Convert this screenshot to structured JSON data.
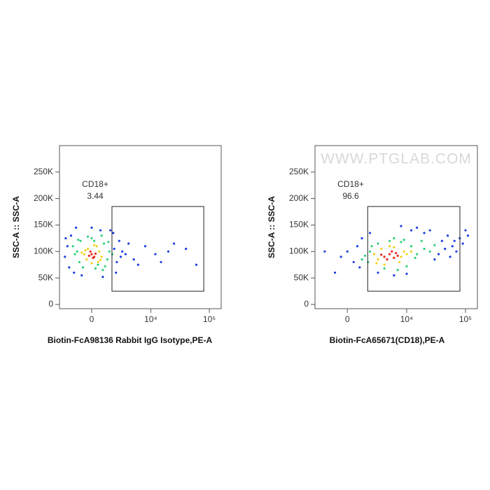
{
  "chart_data": [
    {
      "type": "scatter",
      "xlabel": "Biotin-FcA98136 Rabbit IgG Isotype,PE-A",
      "ylabel": "SSC-A :: SSC-A",
      "xscale": "biexponential",
      "xlim": [
        -3240,
        159000
      ],
      "ylim": [
        -8000,
        300000
      ],
      "xticks": [
        0,
        {
          "value": 10000,
          "label": "10⁴"
        },
        {
          "value": 100000,
          "label": "10⁵"
        }
      ],
      "yticks": [
        0,
        {
          "value": 50000,
          "label": "50K"
        },
        {
          "value": 100000,
          "label": "100K"
        },
        {
          "value": 150000,
          "label": "150K"
        },
        {
          "value": 200000,
          "label": "200K"
        },
        {
          "value": 250000,
          "label": "250K"
        }
      ],
      "gate": {
        "name": "CD18+",
        "percent": 3.44,
        "x": [
          1760,
          80400
        ],
        "y": [
          25000,
          185000
        ]
      },
      "series": [
        {
          "color": "#1a3fe0",
          "x": [
            -2500,
            -2200,
            -2000,
            -1800,
            2000,
            2300,
            2600,
            -1500,
            1600,
            0,
            -800,
            900,
            3000,
            3500,
            4000,
            5000,
            6000,
            8000,
            12000,
            15000,
            20000,
            25000,
            40000,
            60000,
            2200,
            -2400,
            1900,
            -1300,
            2800,
            700
          ],
          "values": [
            90000,
            110000,
            70000,
            130000,
            105000,
            80000,
            120000,
            60000,
            140000,
            145000,
            55000,
            52000,
            100000,
            95000,
            115000,
            85000,
            75000,
            110000,
            95000,
            80000,
            100000,
            115000,
            105000,
            75000,
            60000,
            125000,
            135000,
            145000,
            90000,
            140000
          ]
        },
        {
          "color": "#2fd07a",
          "x": [
            -1200,
            -1000,
            1000,
            1300,
            -900,
            1100,
            -1400,
            1500,
            0,
            300,
            -700,
            800,
            1800,
            -1600,
            500,
            -300,
            1400,
            -1100,
            900,
            200
          ],
          "values": [
            100000,
            80000,
            115000,
            85000,
            120000,
            72000,
            95000,
            100000,
            125000,
            68000,
            70000,
            130000,
            95000,
            110000,
            75000,
            128000,
            118000,
            122000,
            65000,
            120000
          ]
        },
        {
          "color": "#f2d21e",
          "x": [
            -600,
            -400,
            600,
            500,
            -300,
            400,
            800,
            -800,
            0,
            200,
            -500,
            700
          ],
          "values": [
            95000,
            85000,
            100000,
            80000,
            105000,
            110000,
            90000,
            98000,
            78000,
            112000,
            102000,
            84000
          ]
        },
        {
          "color": "#e8251c",
          "x": [
            -200,
            100,
            300,
            -100,
            200,
            0
          ],
          "values": [
            92000,
            88000,
            96000,
            100000,
            90000,
            95000
          ]
        }
      ]
    },
    {
      "type": "scatter",
      "xlabel": "Biotin-FcA65671(CD18),PE-A",
      "ylabel": "SSC-A :: SSC-A",
      "xscale": "biexponential",
      "watermark": "WWW.PTGLAB.COM",
      "xlim": [
        -3240,
        159000
      ],
      "ylim": [
        -8000,
        300000
      ],
      "xticks": [
        0,
        {
          "value": 10000,
          "label": "10⁴"
        },
        {
          "value": 100000,
          "label": "10⁵"
        }
      ],
      "yticks": [
        0,
        {
          "value": 50000,
          "label": "50K"
        },
        {
          "value": 100000,
          "label": "100K"
        },
        {
          "value": 150000,
          "label": "150K"
        },
        {
          "value": 200000,
          "label": "200K"
        },
        {
          "value": 250000,
          "label": "250K"
        }
      ],
      "gate": {
        "name": "CD18+",
        "percent": 96.6,
        "x": [
          1760,
          80400
        ],
        "y": [
          25000,
          185000
        ]
      },
      "series": [
        {
          "color": "#1a3fe0",
          "x": [
            -500,
            0,
            500,
            800,
            1000,
            40000,
            50000,
            60000,
            80000,
            100000,
            35000,
            25000,
            20000,
            45000,
            15000,
            70000,
            1200,
            3000,
            6000,
            10000,
            12000,
            30000,
            -1000,
            90000,
            55000,
            8000,
            2000,
            65000,
            -2000,
            110000
          ],
          "values": [
            90000,
            100000,
            80000,
            110000,
            70000,
            120000,
            130000,
            110000,
            125000,
            140000,
            95000,
            140000,
            135000,
            105000,
            145000,
            100000,
            125000,
            60000,
            55000,
            58000,
            140000,
            85000,
            60000,
            115000,
            90000,
            148000,
            135000,
            120000,
            100000,
            130000
          ]
        },
        {
          "color": "#2fd07a",
          "x": [
            1500,
            2000,
            12000,
            15000,
            20000,
            1800,
            3000,
            25000,
            8000,
            10000,
            4000,
            6000,
            18000,
            30000,
            1200,
            7000,
            14000,
            2200,
            5000,
            9000
          ],
          "values": [
            92000,
            100000,
            110000,
            95000,
            105000,
            80000,
            115000,
            100000,
            118000,
            72000,
            68000,
            125000,
            120000,
            112000,
            85000,
            65000,
            88000,
            110000,
            120000,
            122000
          ]
        },
        {
          "color": "#f2d21e",
          "x": [
            2500,
            3000,
            8000,
            9000,
            3500,
            10000,
            7500,
            2800,
            5000,
            6000,
            12000,
            4000
          ],
          "values": [
            95000,
            85000,
            90000,
            100000,
            105000,
            95000,
            80000,
            78000,
            110000,
            108000,
            100000,
            75000
          ]
        },
        {
          "color": "#e8251c",
          "x": [
            4000,
            5000,
            6000,
            4500,
            5500,
            7000,
            3500,
            6500
          ],
          "values": [
            90000,
            95000,
            88000,
            85000,
            100000,
            92000,
            94000,
            97000
          ]
        }
      ]
    }
  ]
}
